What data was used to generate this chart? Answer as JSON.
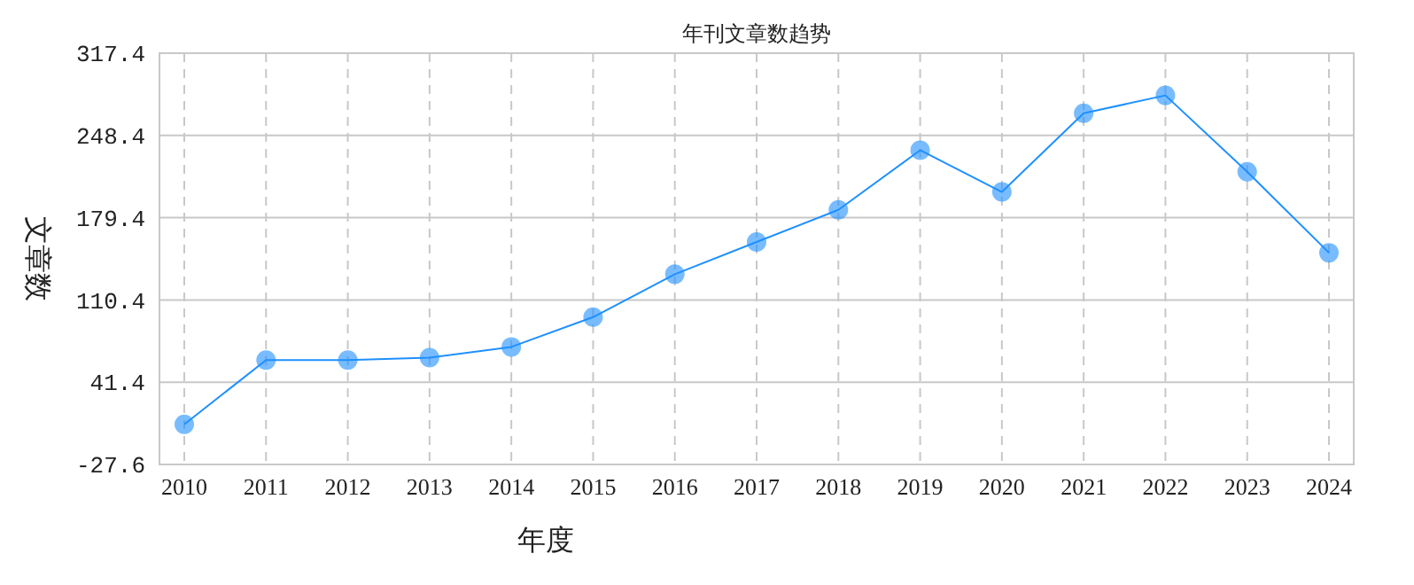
{
  "chart_data": {
    "type": "line",
    "title": "年刊文章数趋势",
    "xlabel": "年度",
    "ylabel": "文章数",
    "categories": [
      "2010",
      "2011",
      "2012",
      "2013",
      "2014",
      "2015",
      "2016",
      "2017",
      "2018",
      "2019",
      "2020",
      "2021",
      "2022",
      "2023",
      "2024"
    ],
    "series": [
      {
        "color": "#1e90ff",
        "values": [
          6,
          60,
          60,
          62,
          71,
          96,
          132,
          159,
          186,
          236,
          201,
          267,
          282,
          218,
          150
        ]
      }
    ],
    "ylim": [
      -27.6,
      317.4
    ],
    "yticks": [
      -27.6,
      41.4,
      110.4,
      179.4,
      248.4,
      317.4
    ],
    "grid": true,
    "marker": "circle",
    "line_style": "solid"
  }
}
